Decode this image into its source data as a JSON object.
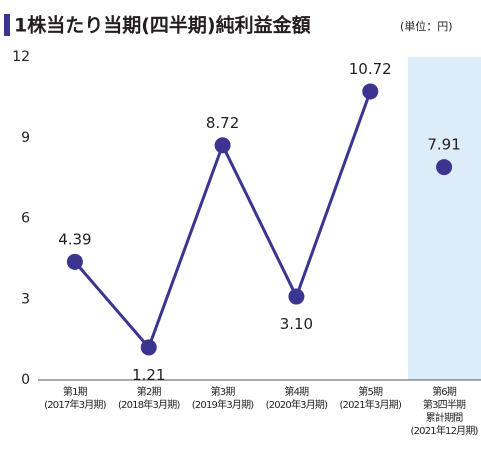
{
  "chart_data": {
    "type": "line",
    "title": "1株当たり当期(四半期)純利益金額",
    "unit": "(単位：円)",
    "categories": [
      [
        "第1期",
        "(2017年3月期)"
      ],
      [
        "第2期",
        "(2018年3月期)"
      ],
      [
        "第3期",
        "(2019年3月期)"
      ],
      [
        "第4期",
        "(2020年3月期)"
      ],
      [
        "第5期",
        "(2021年3月期)"
      ],
      [
        "第6期",
        "第3四半期",
        "累計期間",
        "(2021年12月期)"
      ]
    ],
    "series": [
      {
        "color": "#3b3590",
        "values": [
          4.39,
          1.21,
          8.72,
          3.1,
          10.72,
          null
        ],
        "value_labels": [
          "4.39",
          "1.21",
          "8.72",
          "3.10",
          "10.72",
          null
        ]
      },
      {
        "color": "#3b3590",
        "values": [
          null,
          null,
          null,
          null,
          null,
          7.91
        ]
      }
    ],
    "ylim": [
      0,
      12
    ],
    "yticks": [
      0,
      3,
      6,
      9,
      12
    ]
  }
}
